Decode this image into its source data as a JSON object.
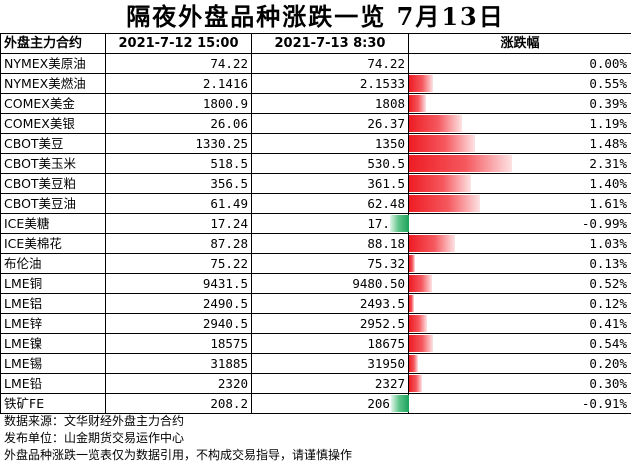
{
  "title": "隔夜外盘品种涨跌一览 7月13日",
  "headers": [
    "外盘主力合约",
    "2021-7-12 15:00",
    "2021-7-13 8:30",
    "涨跌幅"
  ],
  "rows": [
    {
      "name": "NYMEX美原油",
      "prev": "74.22",
      "curr": "74.22",
      "pct": "0.00%",
      "pct_value": 0.0
    },
    {
      "name": "NYMEX美燃油",
      "prev": "2.1416",
      "curr": "2.1533",
      "pct": "0.55%",
      "pct_value": 0.55
    },
    {
      "name": "COMEX美金",
      "prev": "1800.9",
      "curr": "1808",
      "pct": "0.39%",
      "pct_value": 0.39
    },
    {
      "name": "COMEX美银",
      "prev": "26.06",
      "curr": "26.37",
      "pct": "1.19%",
      "pct_value": 1.19
    },
    {
      "name": "CBOT美豆",
      "prev": "1330.25",
      "curr": "1350",
      "pct": "1.48%",
      "pct_value": 1.48
    },
    {
      "name": "CBOT美玉米",
      "prev": "518.5",
      "curr": "530.5",
      "pct": "2.31%",
      "pct_value": 2.31
    },
    {
      "name": "CBOT美豆粕",
      "prev": "356.5",
      "curr": "361.5",
      "pct": "1.40%",
      "pct_value": 1.4
    },
    {
      "name": "CBOT美豆油",
      "prev": "61.49",
      "curr": "62.48",
      "pct": "1.61%",
      "pct_value": 1.61
    },
    {
      "name": "ICE美糖",
      "prev": "17.24",
      "curr": "17.07",
      "pct": "-0.99%",
      "pct_value": -0.99
    },
    {
      "name": "ICE美棉花",
      "prev": "87.28",
      "curr": "88.18",
      "pct": "1.03%",
      "pct_value": 1.03
    },
    {
      "name": "布伦油",
      "prev": "75.22",
      "curr": "75.32",
      "pct": "0.13%",
      "pct_value": 0.13
    },
    {
      "name": "LME铜",
      "prev": "9431.5",
      "curr": "9480.50",
      "pct": "0.52%",
      "pct_value": 0.52
    },
    {
      "name": "LME铝",
      "prev": "2490.5",
      "curr": "2493.5",
      "pct": "0.12%",
      "pct_value": 0.12
    },
    {
      "name": "LME锌",
      "prev": "2940.5",
      "curr": "2952.5",
      "pct": "0.41%",
      "pct_value": 0.41
    },
    {
      "name": "LME镍",
      "prev": "18575",
      "curr": "18675",
      "pct": "0.54%",
      "pct_value": 0.54
    },
    {
      "name": "LME锡",
      "prev": "31885",
      "curr": "31950",
      "pct": "0.20%",
      "pct_value": 0.2
    },
    {
      "name": "LME铅",
      "prev": "2320",
      "curr": "2327",
      "pct": "0.30%",
      "pct_value": 0.3
    },
    {
      "name": "铁矿FE",
      "prev": "208.2",
      "curr": "206.3",
      "pct": "-0.91%",
      "pct_value": -0.91
    }
  ],
  "notes": [
    "数据来源：文华财经外盘主力合约",
    "发布单位：山金期货交易运作中心",
    "外盘品种涨跌一览表仅为数据引用，不构成交易指导，请谨慎操作"
  ],
  "colors": {
    "up": "#ee1c24",
    "down": "#1aa35a"
  }
}
